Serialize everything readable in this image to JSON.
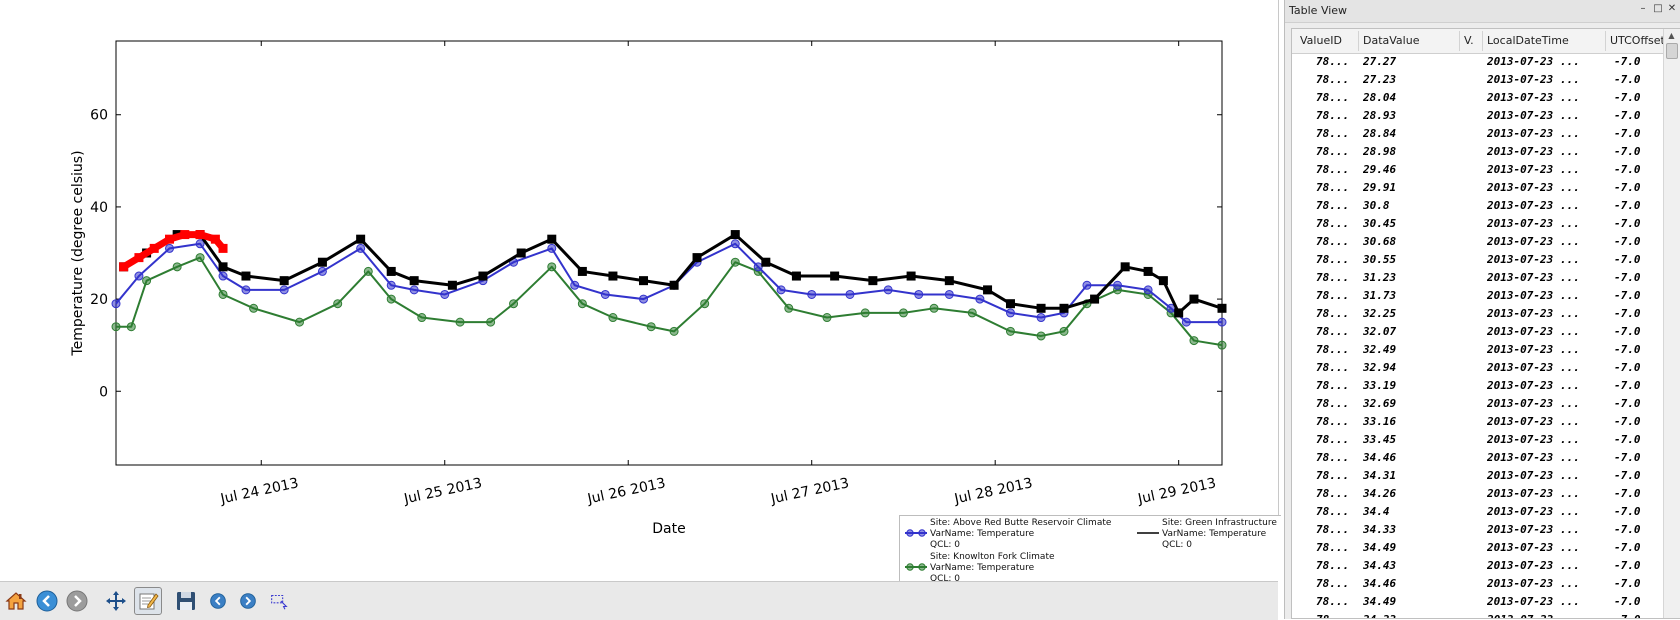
{
  "chart_data": {
    "type": "line",
    "title": "",
    "xlabel": "Date",
    "ylabel": "Temperature (degree celsius)",
    "xlim": [
      "2013-07-23T05:00",
      "2013-07-29T05:40"
    ],
    "ylim": [
      -16,
      76
    ],
    "yticks": [
      0,
      20,
      40,
      60
    ],
    "xticks": [
      {
        "value": "2013-07-24",
        "label": "Jul 24 2013"
      },
      {
        "value": "2013-07-25",
        "label": "Jul 25 2013"
      },
      {
        "value": "2013-07-26",
        "label": "Jul 26 2013"
      },
      {
        "value": "2013-07-27",
        "label": "Jul 27 2013"
      },
      {
        "value": "2013-07-28",
        "label": "Jul 28 2013"
      },
      {
        "value": "2013-07-29",
        "label": "Jul 29 2013"
      }
    ],
    "grid": false,
    "legend_position": "bottom-right",
    "series": [
      {
        "name": "Site: Above Red Butte Reservoir Climate\nVarName: Temperature\nQCL: 0",
        "color": "#3333cc",
        "marker": "circle",
        "x": [
          "2013-07-23T05:00",
          "2013-07-23T08:00",
          "2013-07-23T12:00",
          "2013-07-23T16:00",
          "2013-07-23T19:00",
          "2013-07-23T22:00",
          "2013-07-24T03:00",
          "2013-07-24T08:00",
          "2013-07-24T13:00",
          "2013-07-24T17:00",
          "2013-07-24T20:00",
          "2013-07-25T00:00",
          "2013-07-25T05:00",
          "2013-07-25T09:00",
          "2013-07-25T14:00",
          "2013-07-25T17:00",
          "2013-07-25T21:00",
          "2013-07-26T02:00",
          "2013-07-26T06:00",
          "2013-07-26T09:00",
          "2013-07-26T14:00",
          "2013-07-26T17:00",
          "2013-07-26T20:00",
          "2013-07-27T00:00",
          "2013-07-27T05:00",
          "2013-07-27T10:00",
          "2013-07-27T14:00",
          "2013-07-27T18:00",
          "2013-07-27T22:00",
          "2013-07-28T02:00",
          "2013-07-28T06:00",
          "2013-07-28T09:00",
          "2013-07-28T12:00",
          "2013-07-28T16:00",
          "2013-07-28T20:00",
          "2013-07-28T23:00",
          "2013-07-29T01:00",
          "2013-07-29T05:40"
        ],
        "y": [
          19,
          25,
          31,
          32,
          25,
          22,
          22,
          26,
          31,
          23,
          22,
          21,
          24,
          28,
          31,
          23,
          21,
          20,
          23,
          28,
          32,
          27,
          22,
          21,
          21,
          22,
          21,
          21,
          20,
          17,
          16,
          17,
          23,
          23,
          22,
          18,
          15,
          15
        ]
      },
      {
        "name": "Site: Knowlton Fork Climate\nVarName: Temperature\nQCL: 0",
        "color": "#2e7d32",
        "marker": "circle",
        "x": [
          "2013-07-23T05:00",
          "2013-07-23T07:00",
          "2013-07-23T09:00",
          "2013-07-23T13:00",
          "2013-07-23T16:00",
          "2013-07-23T19:00",
          "2013-07-23T23:00",
          "2013-07-24T05:00",
          "2013-07-24T10:00",
          "2013-07-24T14:00",
          "2013-07-24T17:00",
          "2013-07-24T21:00",
          "2013-07-25T02:00",
          "2013-07-25T06:00",
          "2013-07-25T09:00",
          "2013-07-25T14:00",
          "2013-07-25T18:00",
          "2013-07-25T22:00",
          "2013-07-26T03:00",
          "2013-07-26T06:00",
          "2013-07-26T10:00",
          "2013-07-26T14:00",
          "2013-07-26T17:00",
          "2013-07-26T21:00",
          "2013-07-27T02:00",
          "2013-07-27T07:00",
          "2013-07-27T12:00",
          "2013-07-27T16:00",
          "2013-07-27T21:00",
          "2013-07-28T02:00",
          "2013-07-28T06:00",
          "2013-07-28T09:00",
          "2013-07-28T12:00",
          "2013-07-28T16:00",
          "2013-07-28T20:00",
          "2013-07-28T23:00",
          "2013-07-29T02:00",
          "2013-07-29T05:40"
        ],
        "y": [
          14,
          14,
          24,
          27,
          29,
          21,
          18,
          15,
          19,
          26,
          20,
          16,
          15,
          15,
          19,
          27,
          19,
          16,
          14,
          13,
          19,
          28,
          26,
          18,
          16,
          17,
          17,
          18,
          17,
          13,
          12,
          13,
          19,
          22,
          21,
          17,
          11,
          10
        ]
      },
      {
        "name": "Site: Green Infrastructure\nVarName: Temperature\nQCL: 0",
        "color": "#000000",
        "marker": "square",
        "x": [
          "2013-07-23T06:00",
          "2013-07-23T09:00",
          "2013-07-23T13:00",
          "2013-07-23T16:00",
          "2013-07-23T19:00",
          "2013-07-23T22:00",
          "2013-07-24T03:00",
          "2013-07-24T08:00",
          "2013-07-24T13:00",
          "2013-07-24T17:00",
          "2013-07-24T20:00",
          "2013-07-25T01:00",
          "2013-07-25T05:00",
          "2013-07-25T10:00",
          "2013-07-25T14:00",
          "2013-07-25T18:00",
          "2013-07-25T22:00",
          "2013-07-26T02:00",
          "2013-07-26T06:00",
          "2013-07-26T09:00",
          "2013-07-26T14:00",
          "2013-07-26T18:00",
          "2013-07-26T22:00",
          "2013-07-27T03:00",
          "2013-07-27T08:00",
          "2013-07-27T13:00",
          "2013-07-27T18:00",
          "2013-07-27T23:00",
          "2013-07-28T02:00",
          "2013-07-28T06:00",
          "2013-07-28T09:00",
          "2013-07-28T13:00",
          "2013-07-28T17:00",
          "2013-07-28T20:00",
          "2013-07-28T22:00",
          "2013-07-29T00:00",
          "2013-07-29T02:00",
          "2013-07-29T05:40"
        ],
        "y": [
          27,
          30,
          34,
          34,
          27,
          25,
          24,
          28,
          33,
          26,
          24,
          23,
          25,
          30,
          33,
          26,
          25,
          24,
          23,
          29,
          34,
          28,
          25,
          25,
          24,
          25,
          24,
          22,
          19,
          18,
          18,
          20,
          27,
          26,
          24,
          17,
          20,
          18
        ]
      }
    ],
    "highlight": {
      "color": "#ff0000",
      "x": [
        "2013-07-23T06:00",
        "2013-07-23T08:00",
        "2013-07-23T10:00",
        "2013-07-23T12:00",
        "2013-07-23T14:00",
        "2013-07-23T16:00",
        "2013-07-23T18:00",
        "2013-07-23T19:00"
      ],
      "y": [
        27,
        29,
        31,
        33,
        34,
        34,
        33,
        31
      ]
    }
  },
  "legend": {
    "entries": [
      {
        "lines": [
          "Site: Above Red Butte Reservoir Climate",
          "VarName: Temperature",
          "QCL: 0"
        ],
        "color": "#3333cc",
        "marker": "circle"
      },
      {
        "lines": [
          "Site: Knowlton Fork Climate",
          "VarName: Temperature",
          "QCL: 0"
        ],
        "color": "#2e7d32",
        "marker": "circle"
      },
      {
        "lines": [
          "Site: Green Infrastructure",
          "VarName: Temperature",
          "QCL: 0"
        ],
        "color": "#000000",
        "marker": "line"
      }
    ]
  },
  "toolbar": {
    "buttons": [
      {
        "name": "home-button",
        "icon": "home-icon"
      },
      {
        "name": "back-button",
        "icon": "arrow-left-icon"
      },
      {
        "name": "forward-button",
        "icon": "arrow-right-icon"
      },
      {
        "name": "pan-button",
        "icon": "move-icon"
      },
      {
        "name": "edit-button",
        "icon": "edit-icon",
        "active": true
      },
      {
        "name": "save-button",
        "icon": "floppy-disk-icon"
      },
      {
        "name": "prev-button",
        "icon": "prev-icon"
      },
      {
        "name": "next-button",
        "icon": "next-icon"
      },
      {
        "name": "select-button",
        "icon": "lasso-icon"
      }
    ]
  },
  "panel": {
    "title": "Table View",
    "controls": [
      "–",
      "□",
      "✕"
    ],
    "columns": [
      "ValueID",
      "DataValue",
      "V.",
      "LocalDateTime",
      "UTCOffset"
    ],
    "rows": [
      [
        "78...",
        "27.27",
        "",
        "2013-07-23 ...",
        "-7.0"
      ],
      [
        "78...",
        "27.23",
        "",
        "2013-07-23 ...",
        "-7.0"
      ],
      [
        "78...",
        "28.04",
        "",
        "2013-07-23 ...",
        "-7.0"
      ],
      [
        "78...",
        "28.93",
        "",
        "2013-07-23 ...",
        "-7.0"
      ],
      [
        "78...",
        "28.84",
        "",
        "2013-07-23 ...",
        "-7.0"
      ],
      [
        "78...",
        "28.98",
        "",
        "2013-07-23 ...",
        "-7.0"
      ],
      [
        "78...",
        "29.46",
        "",
        "2013-07-23 ...",
        "-7.0"
      ],
      [
        "78...",
        "29.91",
        "",
        "2013-07-23 ...",
        "-7.0"
      ],
      [
        "78...",
        "30.8",
        "",
        "2013-07-23 ...",
        "-7.0"
      ],
      [
        "78...",
        "30.45",
        "",
        "2013-07-23 ...",
        "-7.0"
      ],
      [
        "78...",
        "30.68",
        "",
        "2013-07-23 ...",
        "-7.0"
      ],
      [
        "78...",
        "30.55",
        "",
        "2013-07-23 ...",
        "-7.0"
      ],
      [
        "78...",
        "31.23",
        "",
        "2013-07-23 ...",
        "-7.0"
      ],
      [
        "78...",
        "31.73",
        "",
        "2013-07-23 ...",
        "-7.0"
      ],
      [
        "78...",
        "32.25",
        "",
        "2013-07-23 ...",
        "-7.0"
      ],
      [
        "78...",
        "32.07",
        "",
        "2013-07-23 ...",
        "-7.0"
      ],
      [
        "78...",
        "32.49",
        "",
        "2013-07-23 ...",
        "-7.0"
      ],
      [
        "78...",
        "32.94",
        "",
        "2013-07-23 ...",
        "-7.0"
      ],
      [
        "78...",
        "33.19",
        "",
        "2013-07-23 ...",
        "-7.0"
      ],
      [
        "78...",
        "32.69",
        "",
        "2013-07-23 ...",
        "-7.0"
      ],
      [
        "78...",
        "33.16",
        "",
        "2013-07-23 ...",
        "-7.0"
      ],
      [
        "78...",
        "33.45",
        "",
        "2013-07-23 ...",
        "-7.0"
      ],
      [
        "78...",
        "34.46",
        "",
        "2013-07-23 ...",
        "-7.0"
      ],
      [
        "78...",
        "34.31",
        "",
        "2013-07-23 ...",
        "-7.0"
      ],
      [
        "78...",
        "34.26",
        "",
        "2013-07-23 ...",
        "-7.0"
      ],
      [
        "78...",
        "34.4",
        "",
        "2013-07-23 ...",
        "-7.0"
      ],
      [
        "78...",
        "34.33",
        "",
        "2013-07-23 ...",
        "-7.0"
      ],
      [
        "78...",
        "34.49",
        "",
        "2013-07-23 ...",
        "-7.0"
      ],
      [
        "78...",
        "34.43",
        "",
        "2013-07-23 ...",
        "-7.0"
      ],
      [
        "78...",
        "34.46",
        "",
        "2013-07-23 ...",
        "-7.0"
      ],
      [
        "78...",
        "34.49",
        "",
        "2013-07-23 ...",
        "-7.0"
      ],
      [
        "78...",
        "34.33",
        "",
        "2013-07-23 ...",
        "-7.0"
      ]
    ]
  }
}
